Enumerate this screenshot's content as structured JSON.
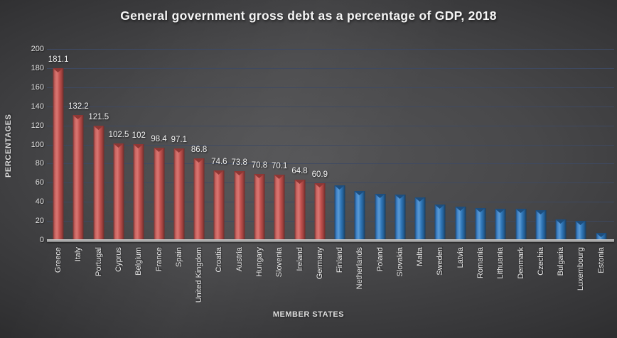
{
  "chart_data": {
    "type": "bar",
    "title": "General government gross debt as a percentage of GDP, 2018",
    "xlabel": "MEMBER STATES",
    "ylabel": "PERCENTAGES",
    "ylim": [
      0,
      200
    ],
    "yticks": [
      0,
      20,
      40,
      60,
      80,
      100,
      120,
      140,
      160,
      180,
      200
    ],
    "grid": true,
    "legend_position": "none",
    "colors": {
      "red_bar": "#c0504d",
      "blue_bar": "#2e75b6",
      "gridline": "#3e4a63",
      "background_center": "#545456",
      "background_edge": "#242425",
      "text": "#f2f2f2",
      "axis_strip": "#a8a8a8"
    },
    "bars": [
      {
        "country": "Greece",
        "value": 181.1,
        "label": "181.1",
        "color": "red"
      },
      {
        "country": "Italy",
        "value": 132.2,
        "label": "132.2",
        "color": "red"
      },
      {
        "country": "Portugal",
        "value": 121.5,
        "label": "121.5",
        "color": "red"
      },
      {
        "country": "Cyprus",
        "value": 102.5,
        "label": "102.5",
        "color": "red"
      },
      {
        "country": "Belgium",
        "value": 102,
        "label": "102",
        "color": "red"
      },
      {
        "country": "France",
        "value": 98.4,
        "label": "98.4",
        "color": "red"
      },
      {
        "country": "Spain",
        "value": 97.1,
        "label": "97.1",
        "color": "red"
      },
      {
        "country": "United Kingdom",
        "value": 86.8,
        "label": "86.8",
        "color": "red"
      },
      {
        "country": "Croatia",
        "value": 74.6,
        "label": "74.6",
        "color": "red"
      },
      {
        "country": "Austria",
        "value": 73.8,
        "label": "73.8",
        "color": "red"
      },
      {
        "country": "Hungary",
        "value": 70.8,
        "label": "70.8",
        "color": "red"
      },
      {
        "country": "Slovenia",
        "value": 70.1,
        "label": "70.1",
        "color": "red"
      },
      {
        "country": "Ireland",
        "value": 64.8,
        "label": "64.8",
        "color": "red"
      },
      {
        "country": "Germany",
        "value": 60.9,
        "label": "60.9",
        "color": "red"
      },
      {
        "country": "Finland",
        "value": 59,
        "label": "",
        "color": "blue"
      },
      {
        "country": "Netherlands",
        "value": 53,
        "label": "",
        "color": "blue"
      },
      {
        "country": "Poland",
        "value": 49.5,
        "label": "",
        "color": "blue"
      },
      {
        "country": "Slovakia",
        "value": 49,
        "label": "",
        "color": "blue"
      },
      {
        "country": "Malta",
        "value": 46,
        "label": "",
        "color": "blue"
      },
      {
        "country": "Sweden",
        "value": 39,
        "label": "",
        "color": "blue"
      },
      {
        "country": "Latvia",
        "value": 36.5,
        "label": "",
        "color": "blue"
      },
      {
        "country": "Romania",
        "value": 35,
        "label": "",
        "color": "blue"
      },
      {
        "country": "Lithuania",
        "value": 34.5,
        "label": "",
        "color": "blue"
      },
      {
        "country": "Denmark",
        "value": 34.5,
        "label": "",
        "color": "blue"
      },
      {
        "country": "Czechia",
        "value": 33,
        "label": "",
        "color": "blue"
      },
      {
        "country": "Bulgaria",
        "value": 23,
        "label": "",
        "color": "blue"
      },
      {
        "country": "Luxembourg",
        "value": 21.5,
        "label": "",
        "color": "blue"
      },
      {
        "country": "Estonia",
        "value": 9,
        "label": "",
        "color": "blue"
      }
    ]
  }
}
